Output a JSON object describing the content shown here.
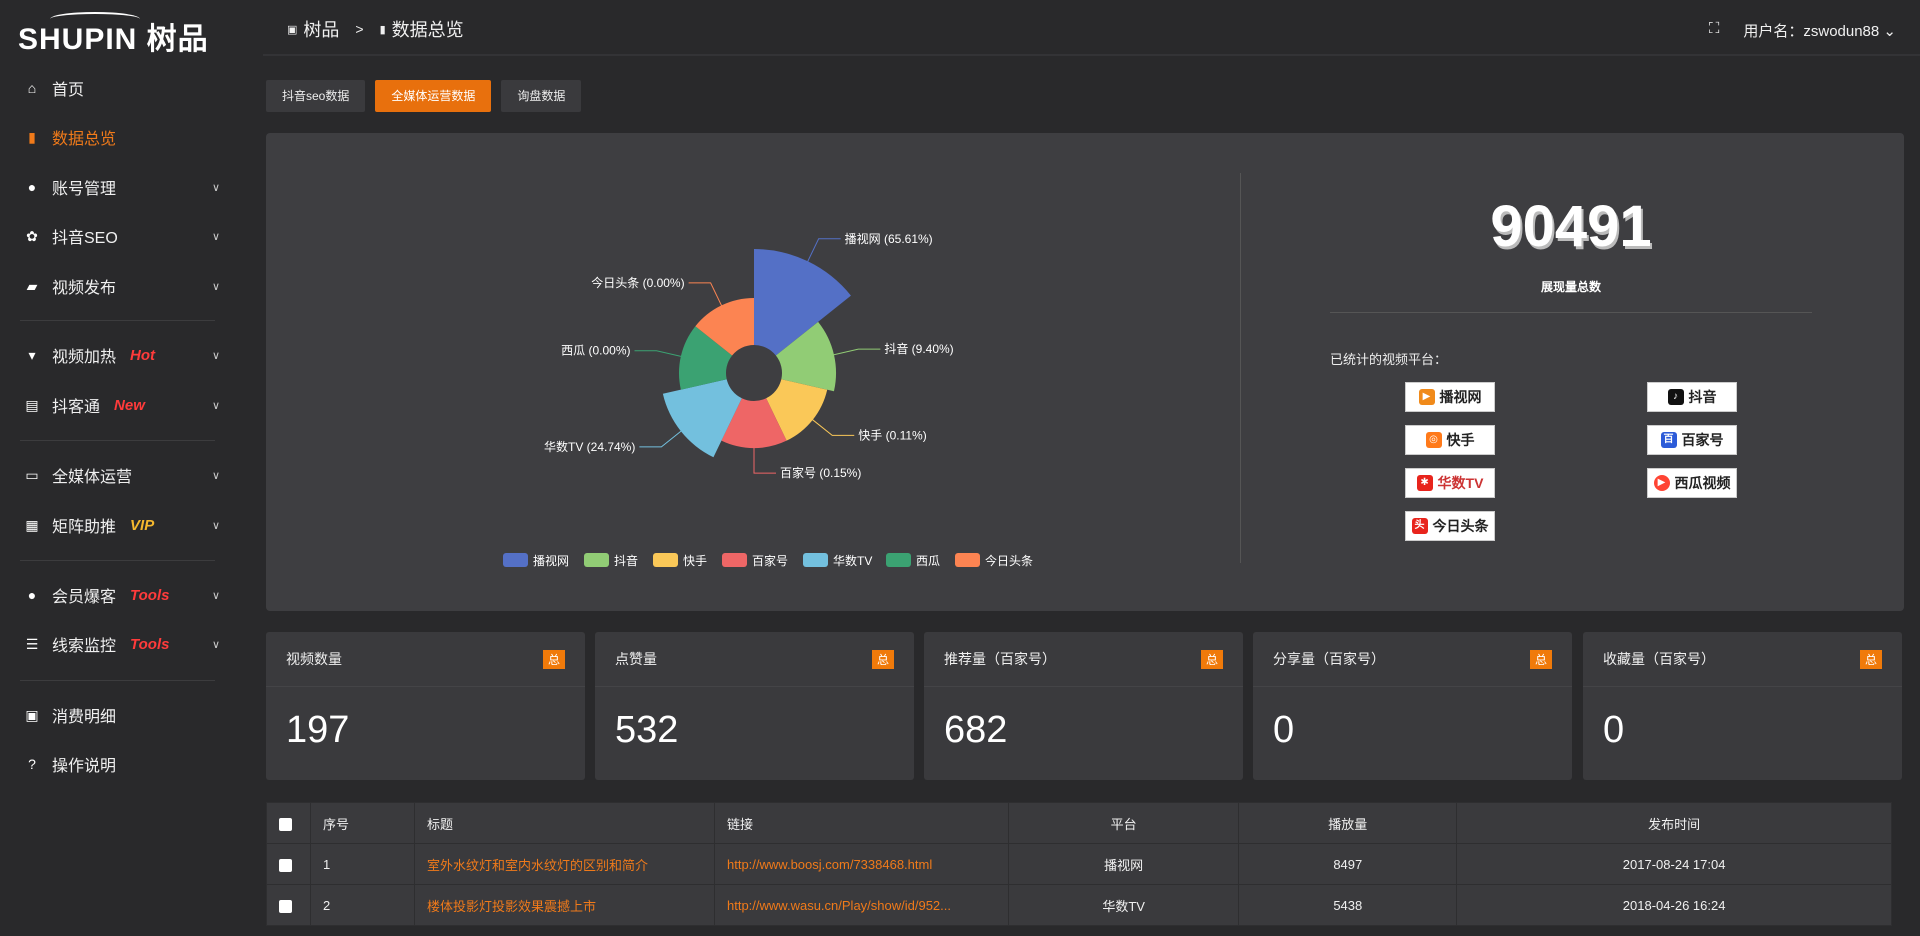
{
  "brand": {
    "logo_text": "SHUPIN 树品"
  },
  "header": {
    "breadcrumb": [
      "树品",
      ">",
      "数据总览"
    ],
    "user_label": "用户名：zswodun88"
  },
  "sidebar": {
    "items": [
      {
        "label": "首页",
        "icon": "home-icon"
      },
      {
        "label": "数据总览",
        "icon": "bar-chart-icon",
        "active": true
      },
      {
        "label": "账号管理",
        "icon": "user-icon",
        "chevron": true
      },
      {
        "label": "抖音SEO",
        "icon": "gear-icon",
        "chevron": true
      },
      {
        "label": "视频发布",
        "icon": "camera-icon",
        "chevron": true
      },
      {
        "label": "视频加热",
        "icon": "monitor-stand-icon",
        "tag": "Hot",
        "tag_color": "#ff3b3b",
        "chevron": true
      },
      {
        "label": "抖客通",
        "icon": "chat-icon",
        "tag": "New",
        "tag_color": "#ff3b3b",
        "chevron": true
      },
      {
        "label": "全媒体运营",
        "icon": "desktop-icon",
        "chevron": true
      },
      {
        "label": "矩阵助推",
        "icon": "grid-icon",
        "tag": "VIP",
        "tag_color": "#f5b82e",
        "chevron": true
      },
      {
        "label": "会员爆客",
        "icon": "user-icon",
        "tag": "Tools",
        "tag_color": "#ff3b3b",
        "chevron": true
      },
      {
        "label": "线索监控",
        "icon": "sliders-icon",
        "tag": "Tools",
        "tag_color": "#ff3b3b",
        "chevron": true
      },
      {
        "label": "消费明细",
        "icon": "wallet-icon"
      },
      {
        "label": "操作说明",
        "icon": "question-icon"
      }
    ]
  },
  "tabs": [
    {
      "label": "抖音seo数据"
    },
    {
      "label": "全媒体运营数据",
      "active": true
    },
    {
      "label": "询盘数据"
    }
  ],
  "chart_data": {
    "type": "pie",
    "subtype": "rose",
    "categories": [
      "播视网",
      "抖音",
      "快手",
      "百家号",
      "华数TV",
      "西瓜",
      "今日头条"
    ],
    "values": [
      65.61,
      9.4,
      0.11,
      0.15,
      24.74,
      0.0,
      0.0
    ],
    "colors": [
      "#5470c6",
      "#91cc75",
      "#fac858",
      "#ee6666",
      "#73c0de",
      "#3ba272",
      "#fc8452"
    ],
    "legend": "bottom"
  },
  "summary": {
    "total": "90491",
    "total_label": "展现量总数",
    "platforms_label": "已统计的视频平台：",
    "platforms": [
      "播视网",
      "抖音",
      "快手",
      "百家号",
      "华数TV",
      "西瓜视频",
      "今日头条"
    ]
  },
  "cards": [
    {
      "title": "视频数量",
      "badge": "总",
      "value": "197"
    },
    {
      "title": "点赞量",
      "badge": "总",
      "value": "532"
    },
    {
      "title": "推荐量（百家号）",
      "badge": "总",
      "value": "682"
    },
    {
      "title": "分享量（百家号）",
      "badge": "总",
      "value": "0"
    },
    {
      "title": "收藏量（百家号）",
      "badge": "总",
      "value": "0"
    }
  ],
  "table": {
    "headers": [
      "序号",
      "标题",
      "链接",
      "平台",
      "播放量",
      "发布时间"
    ],
    "rows": [
      [
        "1",
        "室外水纹灯和室内水纹灯的区别和简介",
        "http://www.boosj.com/7338468.html",
        "播视网",
        "8497",
        "2017-08-24 17:04"
      ],
      [
        "2",
        "楼体投影灯投影效果震撼上市",
        "http://www.wasu.cn/Play/show/id/952...",
        "华数TV",
        "5438",
        "2018-04-26 16:24"
      ]
    ]
  }
}
